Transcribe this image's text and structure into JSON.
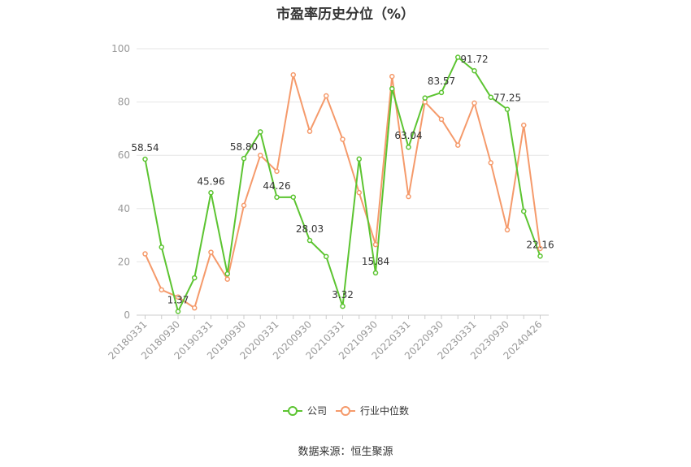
{
  "title": "市盈率历史分位（%）",
  "source": "数据来源：恒生聚源",
  "chart_data": {
    "type": "line",
    "title": "市盈率历史分位（%）",
    "xlabel": "",
    "ylabel": "",
    "ylim": [
      0,
      100
    ],
    "y_ticks": [
      0,
      20,
      40,
      60,
      80,
      100
    ],
    "grid": true,
    "legend_position": "bottom",
    "x_tick_labels": [
      "20180331",
      "20180930",
      "20190331",
      "20190930",
      "20200331",
      "20200930",
      "20210331",
      "20210930",
      "20220331",
      "20220930",
      "20230331",
      "20230930",
      "20240426"
    ],
    "x": [
      "20180331",
      "20180630",
      "20180930",
      "20181231",
      "20190331",
      "20190630",
      "20190930",
      "20191231",
      "20200331",
      "20200630",
      "20200930",
      "20201231",
      "20210331",
      "20210630",
      "20210930",
      "20211231",
      "20220331",
      "20220630",
      "20220930",
      "20221231",
      "20230331",
      "20230630",
      "20230930",
      "20231231",
      "20240426"
    ],
    "series": [
      {
        "name": "公司",
        "color": "#5cc431",
        "values": [
          58.54,
          25.5,
          1.37,
          14.0,
          45.96,
          15.5,
          58.8,
          68.8,
          44.26,
          44.3,
          28.03,
          22.0,
          3.32,
          58.6,
          15.84,
          85.0,
          63.04,
          81.5,
          83.57,
          96.8,
          91.72,
          81.8,
          77.25,
          39.0,
          22.16
        ],
        "labels": [
          "58.54",
          "",
          "1.37",
          "",
          "45.96",
          "",
          "58.80",
          "",
          "44.26",
          "",
          "28.03",
          "",
          "3.32",
          "",
          "15.84",
          "",
          "63.04",
          "",
          "83.57",
          "",
          "91.72",
          "",
          "77.25",
          "",
          "22.16"
        ]
      },
      {
        "name": "行业中位数",
        "color": "#f59a6b",
        "values": [
          23.0,
          9.5,
          6.8,
          2.7,
          23.6,
          13.5,
          41.2,
          60.0,
          54.0,
          90.2,
          69.0,
          82.3,
          66.0,
          46.0,
          26.5,
          89.6,
          44.5,
          80.0,
          73.5,
          63.8,
          79.6,
          57.2,
          32.0,
          71.3,
          25.0
        ]
      }
    ]
  }
}
